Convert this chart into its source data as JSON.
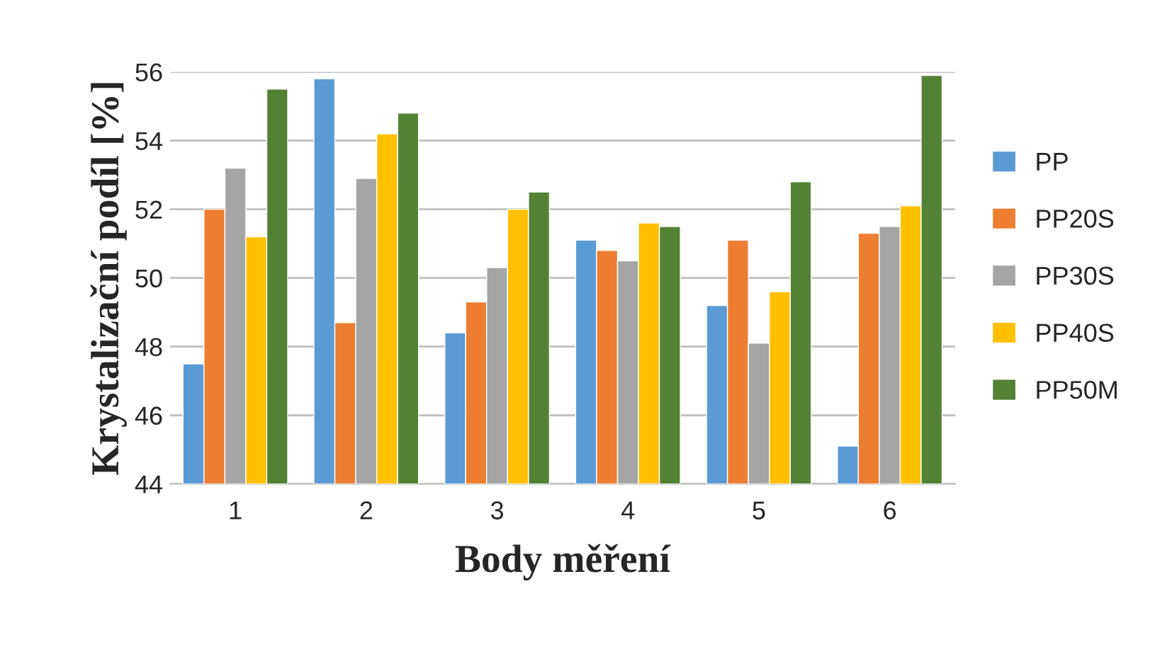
{
  "chart_data": {
    "type": "bar",
    "xlabel": "Body měření",
    "ylabel": "Krystalizační podíl [%]",
    "categories": [
      "1",
      "2",
      "3",
      "4",
      "5",
      "6"
    ],
    "series": [
      {
        "name": "PP",
        "color": "#5b9bd5",
        "values": [
          47.5,
          55.8,
          48.4,
          51.1,
          49.2,
          45.1
        ]
      },
      {
        "name": "PP20S",
        "color": "#ed7d31",
        "values": [
          52.0,
          48.7,
          49.3,
          50.8,
          51.1,
          51.3
        ]
      },
      {
        "name": "PP30S",
        "color": "#a5a5a5",
        "values": [
          53.2,
          52.9,
          50.3,
          50.5,
          48.1,
          51.5
        ]
      },
      {
        "name": "PP40S",
        "color": "#ffc000",
        "values": [
          51.2,
          54.2,
          52.0,
          51.6,
          49.6,
          52.1
        ]
      },
      {
        "name": "PP50M",
        "color": "#548235",
        "values": [
          55.5,
          54.8,
          52.5,
          51.5,
          52.8,
          55.9
        ]
      }
    ],
    "ylim": [
      44,
      56
    ],
    "yticks": [
      44,
      46,
      48,
      50,
      52,
      54,
      56
    ],
    "grid": "y",
    "legend": "right"
  }
}
